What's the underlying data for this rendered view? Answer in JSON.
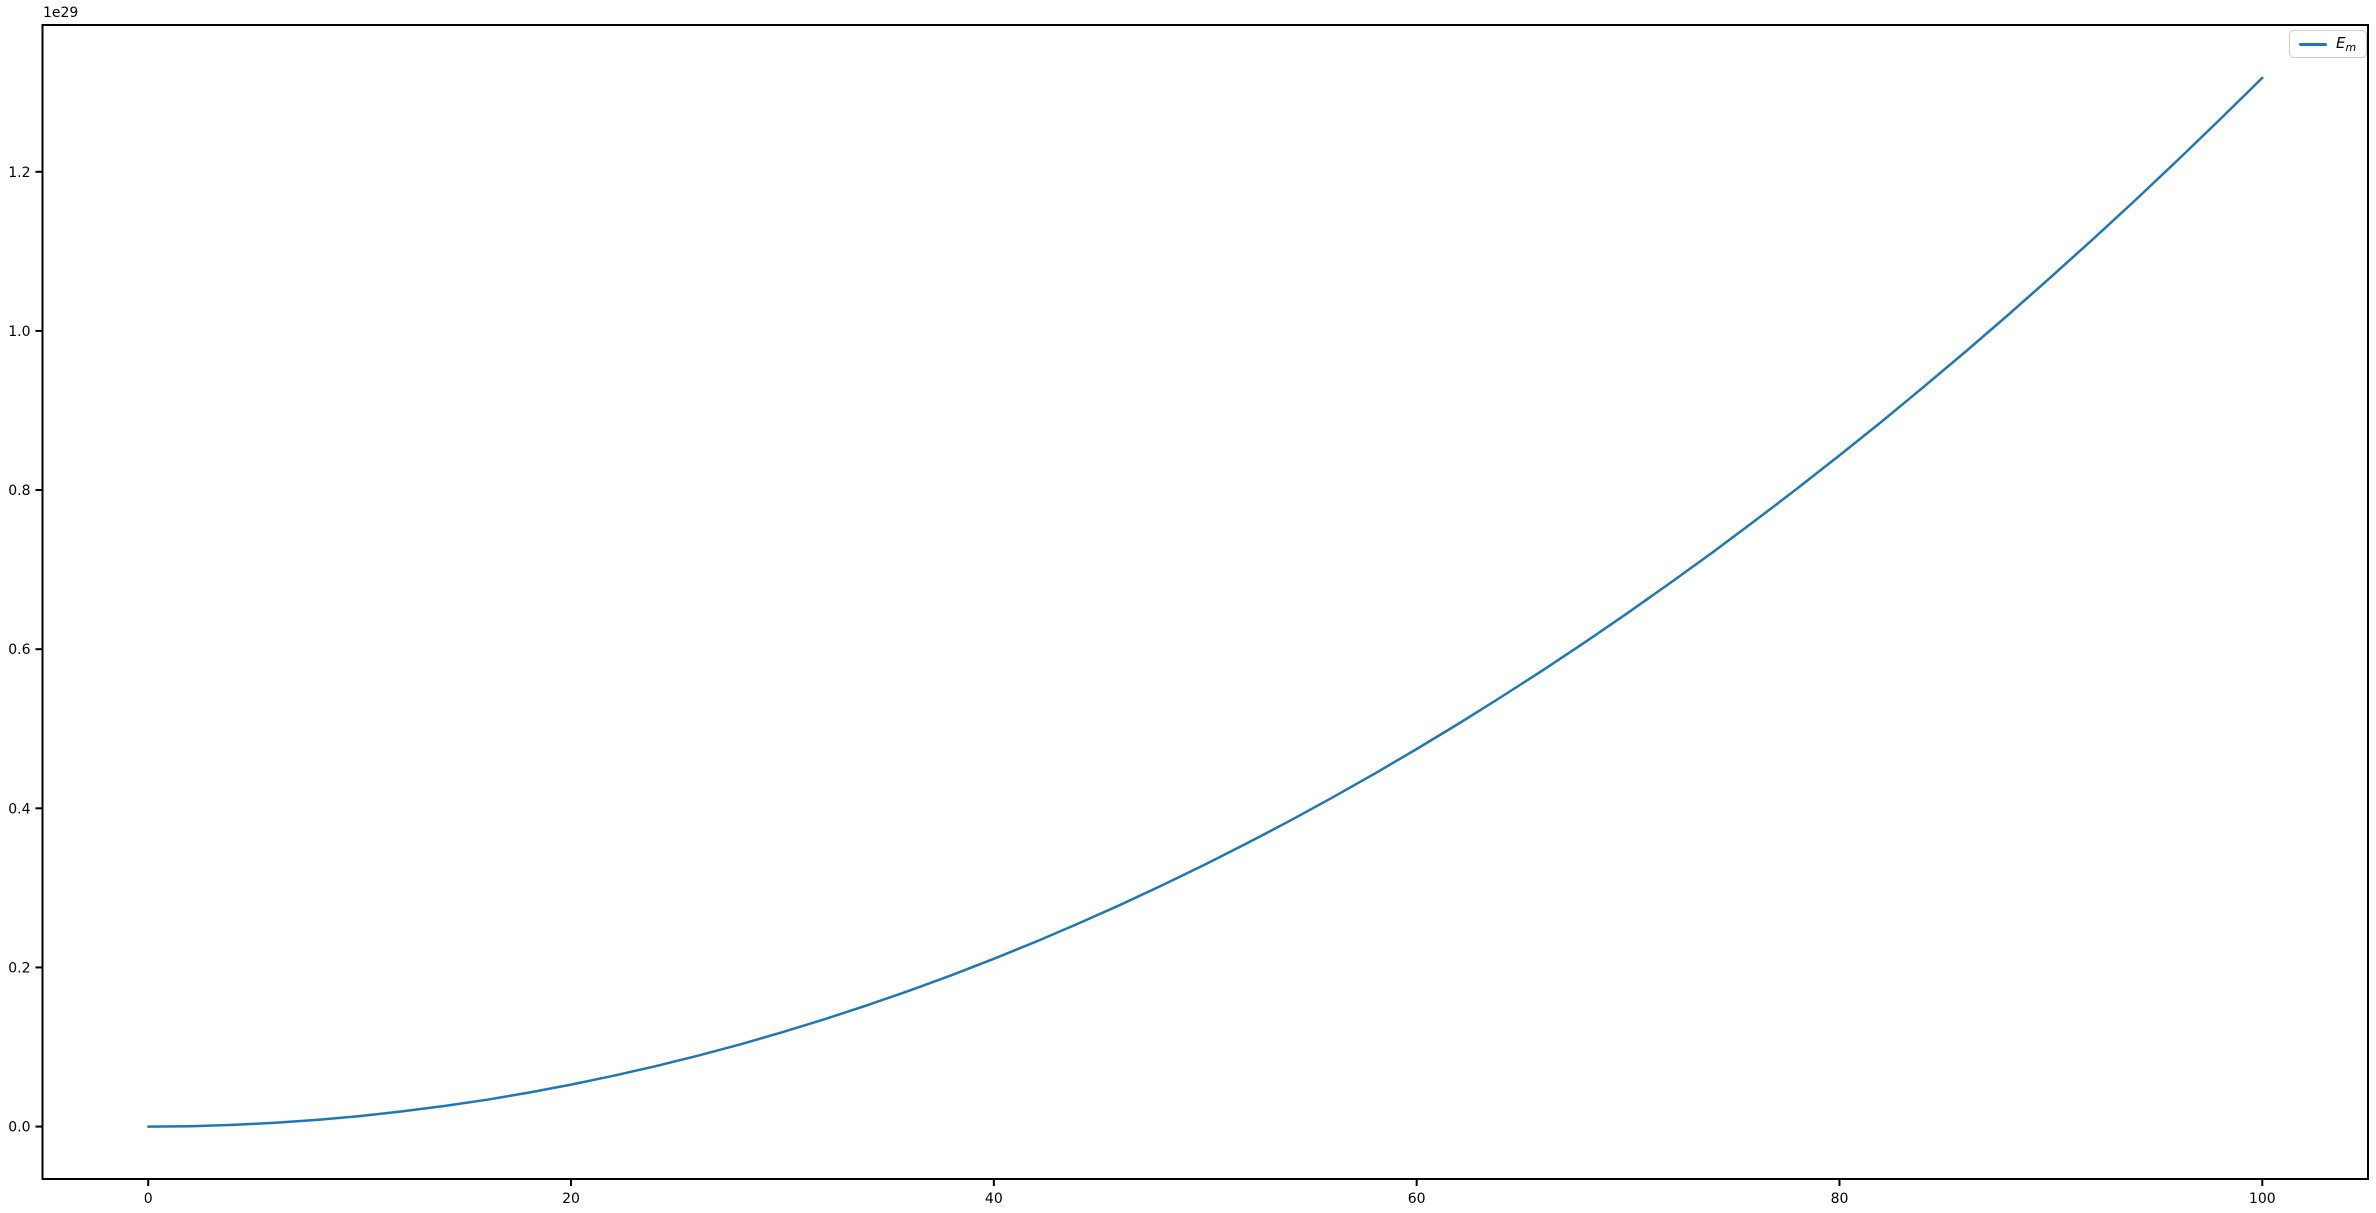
{
  "chart_data": {
    "type": "line",
    "title": "",
    "xlabel": "",
    "ylabel": "",
    "grid": false,
    "background_color": "#ffffff",
    "spine_color": "#000000",
    "y_offset_text": "1e29",
    "y_unit": "1e29",
    "xlim": [
      -5,
      105
    ],
    "ylim_1e29": [
      -0.0659,
      1.3845
    ],
    "x_ticks": [
      0,
      20,
      40,
      60,
      80,
      100
    ],
    "x_tick_labels": [
      "0",
      "20",
      "40",
      "60",
      "80",
      "100"
    ],
    "y_ticks_1e29": [
      0.0,
      0.2,
      0.4,
      0.6,
      0.8,
      1.0,
      1.2
    ],
    "y_tick_labels": [
      "0.0",
      "0.2",
      "0.4",
      "0.6",
      "0.8",
      "1.0",
      "1.2"
    ],
    "legend": {
      "position": "upper right",
      "entries": [
        {
          "label": "E_m",
          "label_main": "E",
          "label_sub": "m",
          "color": "#1f77b4"
        }
      ]
    },
    "series": [
      {
        "name": "E_m",
        "color": "#1f77b4",
        "x": [
          0,
          2,
          4,
          6,
          8,
          10,
          12,
          14,
          16,
          18,
          20,
          22,
          24,
          26,
          28,
          30,
          32,
          34,
          36,
          38,
          40,
          42,
          44,
          46,
          48,
          50,
          52,
          54,
          56,
          58,
          60,
          62,
          64,
          66,
          68,
          70,
          72,
          74,
          76,
          78,
          80,
          82,
          84,
          86,
          88,
          90,
          92,
          94,
          96,
          98,
          100
        ],
        "y_1e29": [
          0,
          0.0005,
          0.0021,
          0.0047,
          0.0084,
          0.0132,
          0.019,
          0.0258,
          0.0337,
          0.0427,
          0.0527,
          0.0638,
          0.0759,
          0.0891,
          0.1033,
          0.1186,
          0.135,
          0.1524,
          0.1708,
          0.1903,
          0.2109,
          0.2325,
          0.2552,
          0.2789,
          0.3037,
          0.3295,
          0.3564,
          0.3843,
          0.4133,
          0.4434,
          0.4745,
          0.5066,
          0.5399,
          0.5741,
          0.6094,
          0.6458,
          0.6833,
          0.7217,
          0.7613,
          0.8019,
          0.8435,
          0.8862,
          0.93,
          0.9748,
          1.0207,
          1.0676,
          1.1156,
          1.1646,
          1.2147,
          1.2658,
          1.318
        ]
      }
    ]
  }
}
